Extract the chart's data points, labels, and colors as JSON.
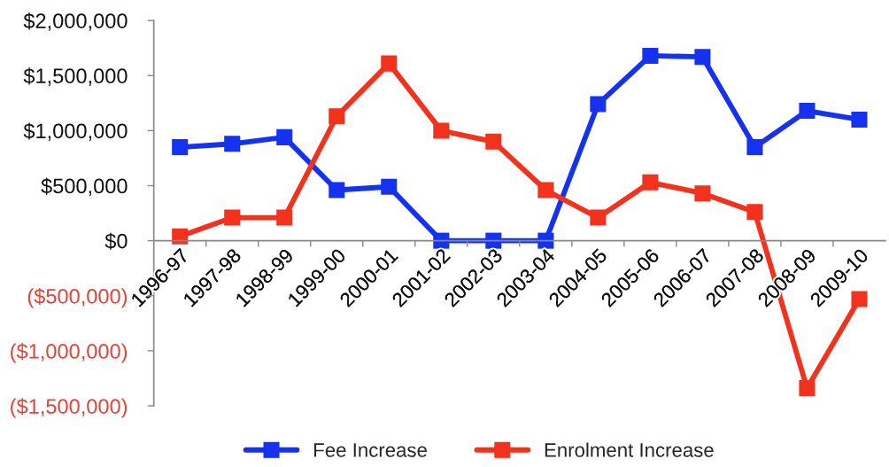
{
  "chart_data": {
    "type": "line",
    "categories": [
      "1996-97",
      "1997-98",
      "1998-99",
      "1999-00",
      "2000-01",
      "2001-02",
      "2002-03",
      "2003-04",
      "2004-05",
      "2005-06",
      "2006-07",
      "2007-08",
      "2008-09",
      "2009-10"
    ],
    "series": [
      {
        "name": "Fee Increase",
        "color": "#1432f0",
        "values": [
          850000,
          880000,
          940000,
          460000,
          490000,
          0,
          0,
          0,
          1240000,
          1680000,
          1670000,
          850000,
          1180000,
          1100000
        ]
      },
      {
        "name": "Enrolment Increase",
        "color": "#f2321c",
        "values": [
          40000,
          210000,
          210000,
          1130000,
          1610000,
          1000000,
          900000,
          460000,
          210000,
          530000,
          430000,
          260000,
          -1340000,
          -530000
        ]
      }
    ],
    "ylim": [
      -1500000,
      2000000
    ],
    "yticks": [
      {
        "value": -1500000,
        "label": "($1,500,000)"
      },
      {
        "value": -1000000,
        "label": "($1,000,000)"
      },
      {
        "value": -500000,
        "label": "($500,000)"
      },
      {
        "value": 0,
        "label": "$0"
      },
      {
        "value": 500000,
        "label": "$500,000"
      },
      {
        "value": 1000000,
        "label": "$1,000,000"
      },
      {
        "value": 1500000,
        "label": "$1,500,000"
      },
      {
        "value": 2000000,
        "label": "$2,000,000"
      }
    ],
    "marker": "square",
    "line_style": "solid",
    "grid": false,
    "legend": "bottom"
  }
}
